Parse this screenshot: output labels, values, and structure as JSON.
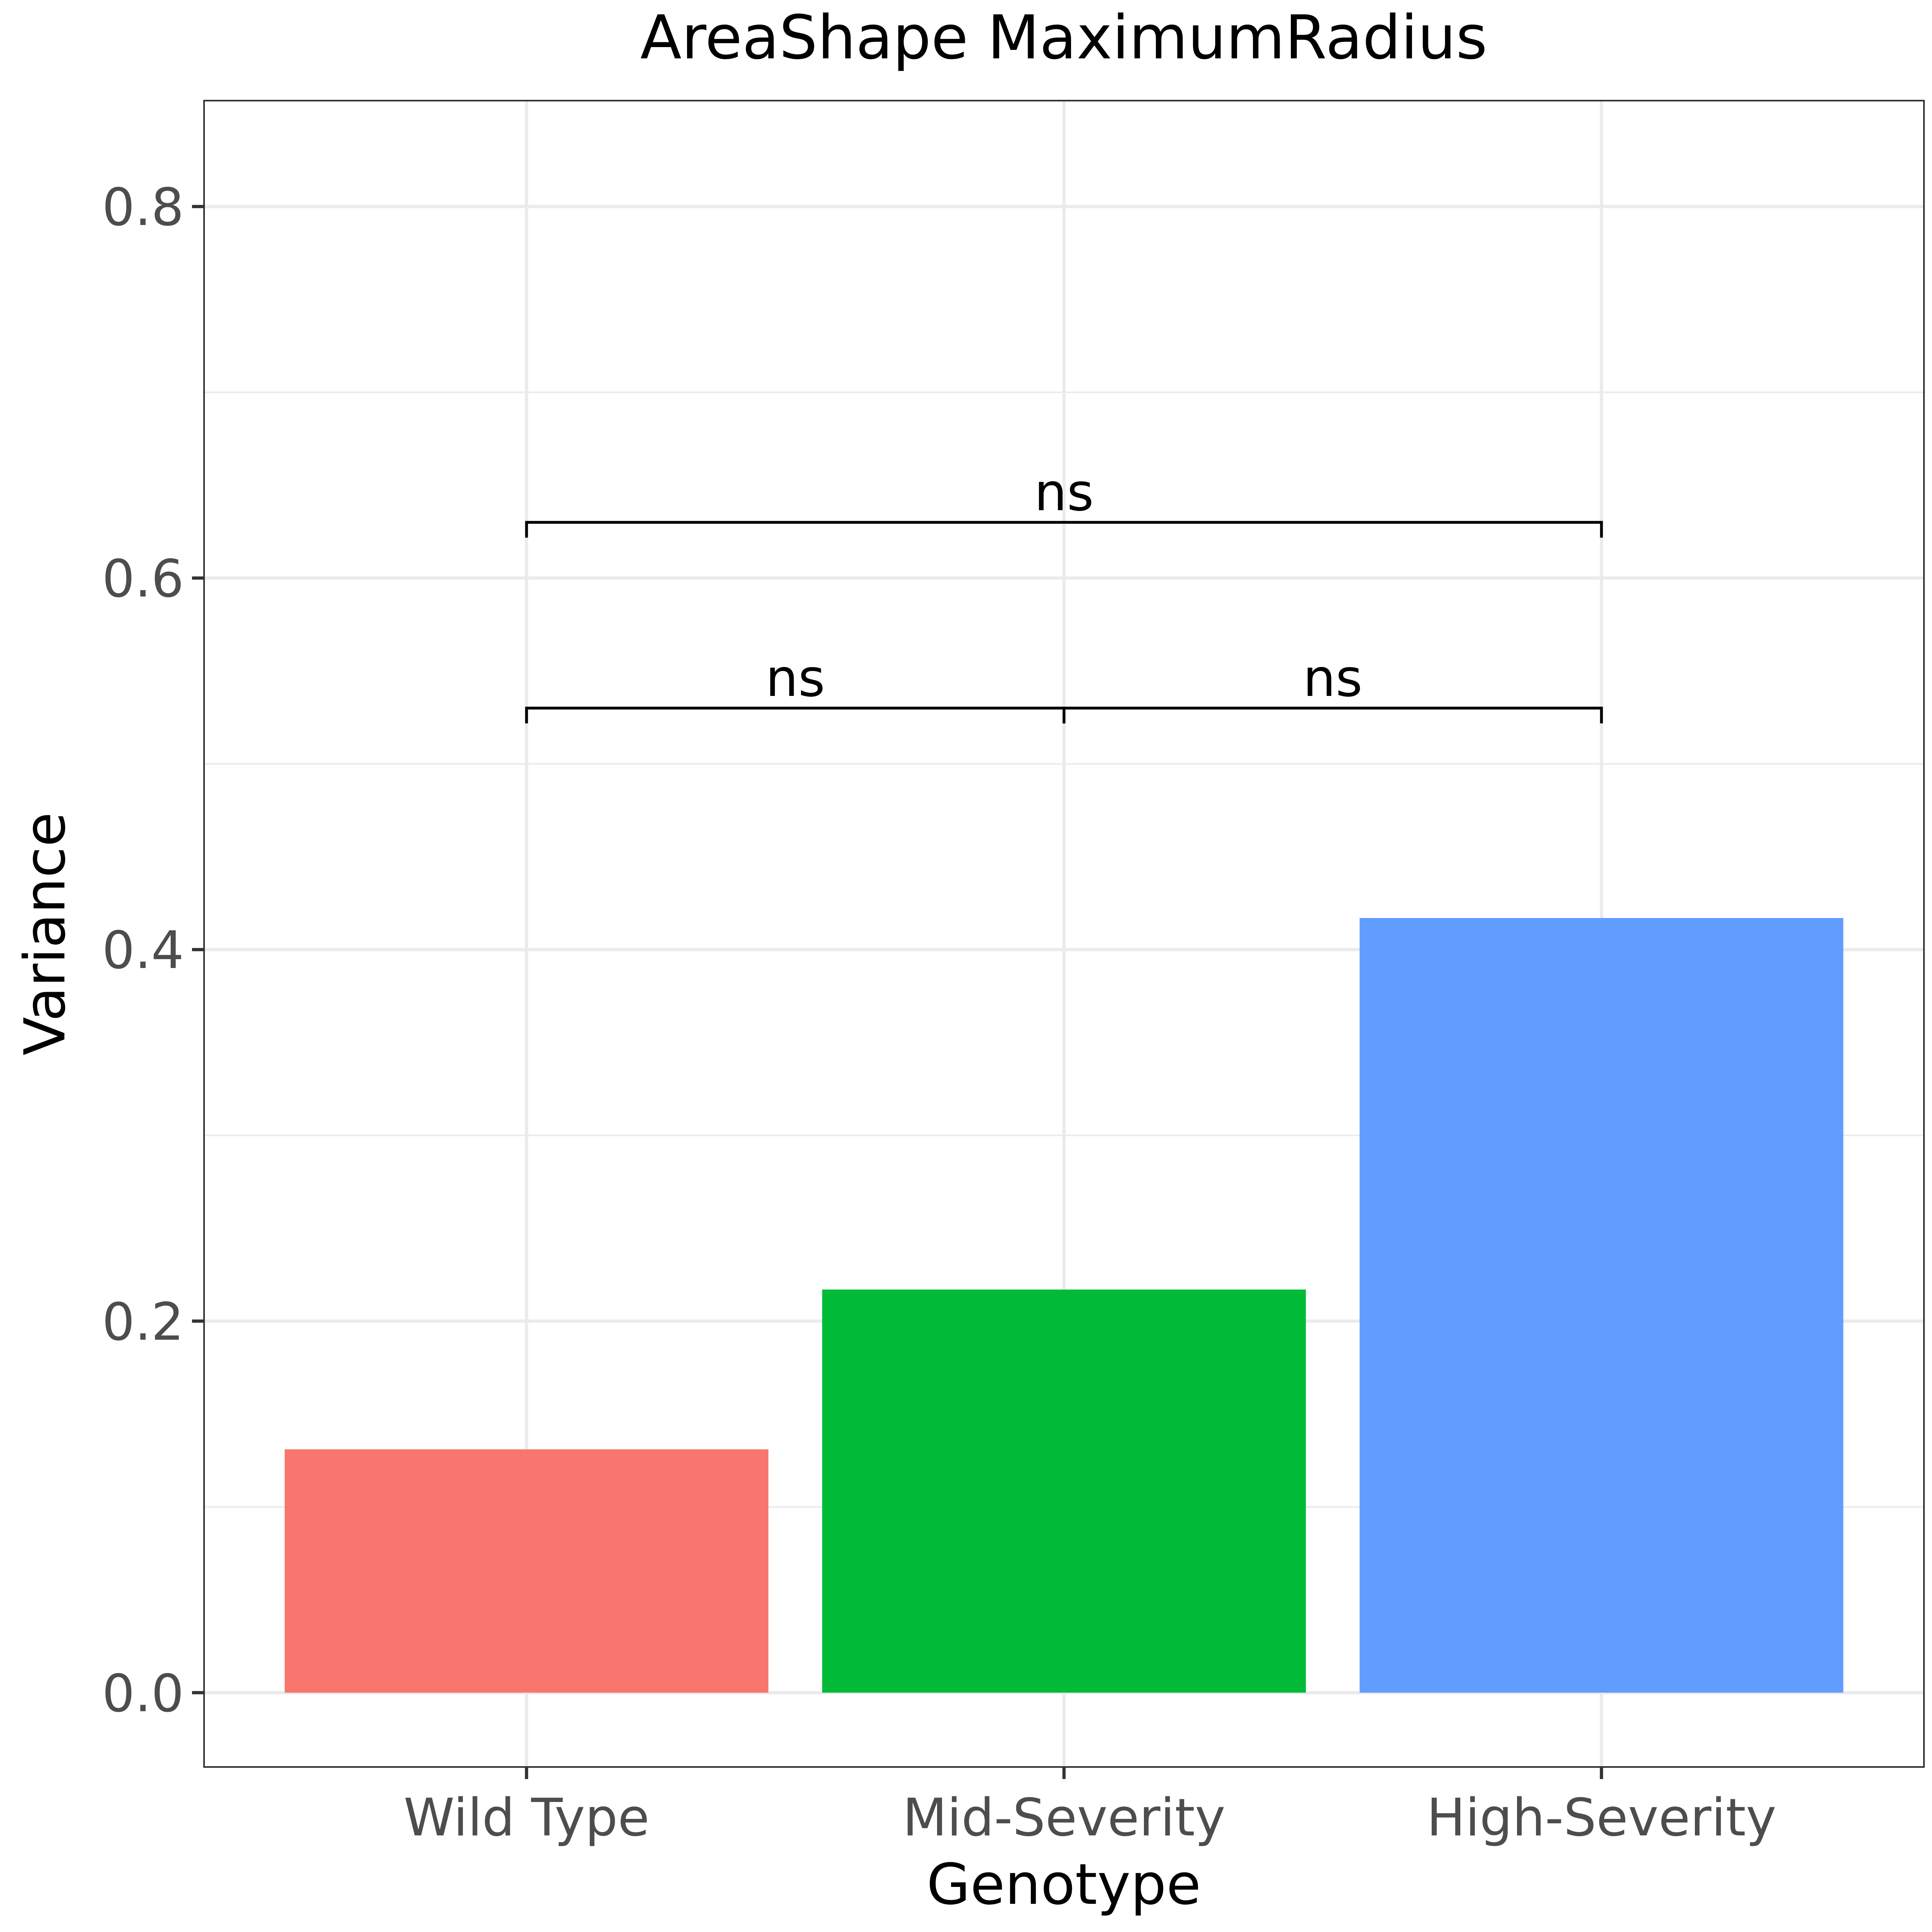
{
  "chart_data": {
    "type": "bar",
    "title": "AreaShape MaximumRadius",
    "xlabel": "Genotype",
    "ylabel": "Variance",
    "categories": [
      "Wild Type",
      "Mid-Severity",
      "High-Severity"
    ],
    "values": [
      0.131,
      0.217,
      0.417
    ],
    "colors": [
      "#F8766D",
      "#00BA38",
      "#619CFF"
    ],
    "ylim": [
      -0.04,
      0.857
    ],
    "yticks": [
      0.0,
      0.2,
      0.4,
      0.6,
      0.8
    ],
    "ytick_labels": [
      "0.0",
      "0.2",
      "0.4",
      "0.6",
      "0.8"
    ],
    "grid": true,
    "legend": "none",
    "annotations": [
      {
        "from": "Wild Type",
        "to": "Mid-Severity",
        "y": 0.53,
        "label": "ns"
      },
      {
        "from": "Mid-Severity",
        "to": "High-Severity",
        "y": 0.53,
        "label": "ns"
      },
      {
        "from": "Wild Type",
        "to": "High-Severity",
        "y": 0.63,
        "label": "ns"
      }
    ]
  }
}
